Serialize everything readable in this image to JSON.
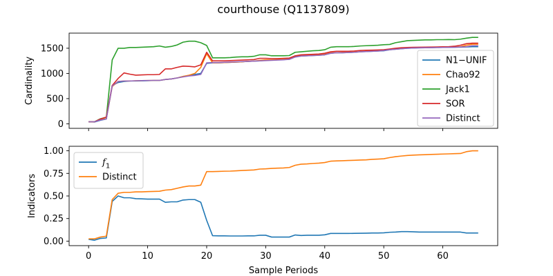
{
  "title": "courthouse (Q1137809)",
  "colors": {
    "blue": "#1f77b4",
    "orange": "#ff7f0e",
    "green": "#2ca02c",
    "red": "#d62728",
    "purple": "#9467bd"
  },
  "chart_data": [
    {
      "type": "line",
      "ylabel": "Cardinality",
      "xlabel": "",
      "xlim": [
        -3.3,
        69.3
      ],
      "ylim": [
        -90,
        1800
      ],
      "xticks": [
        0,
        10,
        20,
        30,
        40,
        50,
        60
      ],
      "yticks": [
        0,
        500,
        1000,
        1500
      ],
      "legend_position": "lower-right",
      "series": [
        {
          "name": "N1−UNIF",
          "color": "#1f77b4",
          "x": [
            0,
            1,
            2,
            3,
            4,
            5,
            6,
            7,
            8,
            9,
            10,
            11,
            12,
            13,
            14,
            15,
            16,
            17,
            18,
            19,
            20,
            21,
            22,
            23,
            24,
            25,
            26,
            27,
            28,
            29,
            30,
            31,
            32,
            33,
            34,
            35,
            36,
            37,
            38,
            39,
            40,
            41,
            42,
            43,
            44,
            45,
            46,
            47,
            48,
            49,
            50,
            51,
            52,
            53,
            54,
            55,
            56,
            57,
            58,
            59,
            60,
            61,
            62,
            63,
            64,
            65,
            66
          ],
          "y": [
            40,
            35,
            70,
            95,
            760,
            820,
            840,
            850,
            850,
            852,
            855,
            860,
            860,
            880,
            890,
            910,
            940,
            960,
            980,
            1000,
            1200,
            1210,
            1210,
            1215,
            1220,
            1225,
            1230,
            1240,
            1245,
            1250,
            1260,
            1265,
            1270,
            1275,
            1280,
            1330,
            1345,
            1350,
            1355,
            1360,
            1370,
            1400,
            1410,
            1410,
            1415,
            1420,
            1430,
            1435,
            1440,
            1445,
            1450,
            1470,
            1480,
            1490,
            1500,
            1505,
            1508,
            1510,
            1512,
            1514,
            1516,
            1518,
            1520,
            1522,
            1525,
            1530,
            1530
          ]
        },
        {
          "name": "Chao92",
          "color": "#ff7f0e",
          "x": [
            0,
            1,
            2,
            3,
            4,
            5,
            6,
            7,
            8,
            9,
            10,
            11,
            12,
            13,
            14,
            15,
            16,
            17,
            18,
            19,
            20,
            21,
            22,
            23,
            24,
            25,
            26,
            27,
            28,
            29,
            30,
            31,
            32,
            33,
            34,
            35,
            36,
            37,
            38,
            39,
            40,
            41,
            42,
            43,
            44,
            45,
            46,
            47,
            48,
            49,
            50,
            51,
            52,
            53,
            54,
            55,
            56,
            57,
            58,
            59,
            60,
            61,
            62,
            63,
            64,
            65,
            66
          ],
          "y": [
            40,
            40,
            90,
            100,
            740,
            840,
            850,
            850,
            855,
            857,
            860,
            862,
            862,
            880,
            890,
            910,
            940,
            965,
            1000,
            1120,
            1390,
            1210,
            1210,
            1215,
            1220,
            1225,
            1230,
            1240,
            1245,
            1260,
            1270,
            1270,
            1275,
            1280,
            1285,
            1350,
            1360,
            1365,
            1370,
            1375,
            1380,
            1410,
            1410,
            1420,
            1420,
            1425,
            1430,
            1440,
            1450,
            1455,
            1460,
            1480,
            1490,
            1500,
            1505,
            1510,
            1512,
            1514,
            1516,
            1518,
            1520,
            1522,
            1525,
            1530,
            1560,
            1580,
            1580
          ]
        },
        {
          "name": "Jack1",
          "color": "#2ca02c",
          "x": [
            0,
            1,
            2,
            3,
            4,
            5,
            6,
            7,
            8,
            9,
            10,
            11,
            12,
            13,
            14,
            15,
            16,
            17,
            18,
            19,
            20,
            21,
            22,
            23,
            24,
            25,
            26,
            27,
            28,
            29,
            30,
            31,
            32,
            33,
            34,
            35,
            36,
            37,
            38,
            39,
            40,
            41,
            42,
            43,
            44,
            45,
            46,
            47,
            48,
            49,
            50,
            51,
            52,
            53,
            54,
            55,
            56,
            57,
            58,
            59,
            60,
            61,
            62,
            63,
            64,
            65,
            66
          ],
          "y": [
            40,
            40,
            100,
            130,
            1270,
            1500,
            1500,
            1515,
            1515,
            1520,
            1525,
            1530,
            1545,
            1520,
            1535,
            1565,
            1620,
            1640,
            1640,
            1610,
            1555,
            1310,
            1310,
            1310,
            1315,
            1325,
            1330,
            1330,
            1340,
            1370,
            1370,
            1350,
            1350,
            1350,
            1355,
            1420,
            1430,
            1440,
            1450,
            1455,
            1470,
            1520,
            1530,
            1530,
            1530,
            1535,
            1545,
            1550,
            1555,
            1560,
            1570,
            1575,
            1610,
            1630,
            1650,
            1655,
            1660,
            1665,
            1665,
            1670,
            1670,
            1672,
            1670,
            1680,
            1700,
            1715,
            1715
          ]
        },
        {
          "name": "SOR",
          "color": "#d62728",
          "x": [
            0,
            1,
            2,
            3,
            4,
            5,
            6,
            7,
            8,
            9,
            10,
            11,
            12,
            13,
            14,
            15,
            16,
            17,
            18,
            19,
            20,
            21,
            22,
            23,
            24,
            25,
            26,
            27,
            28,
            29,
            30,
            31,
            32,
            33,
            34,
            35,
            36,
            37,
            38,
            39,
            40,
            41,
            42,
            43,
            44,
            45,
            46,
            47,
            48,
            49,
            50,
            51,
            52,
            53,
            54,
            55,
            56,
            57,
            58,
            59,
            60,
            61,
            62,
            63,
            64,
            65,
            66
          ],
          "y": [
            40,
            40,
            95,
            135,
            760,
            900,
            1010,
            985,
            965,
            970,
            975,
            975,
            980,
            1090,
            1090,
            1120,
            1145,
            1140,
            1130,
            1170,
            1420,
            1250,
            1250,
            1250,
            1255,
            1260,
            1265,
            1270,
            1275,
            1300,
            1300,
            1295,
            1295,
            1300,
            1305,
            1350,
            1370,
            1375,
            1380,
            1385,
            1400,
            1430,
            1440,
            1440,
            1440,
            1445,
            1455,
            1460,
            1462,
            1465,
            1470,
            1485,
            1500,
            1510,
            1515,
            1518,
            1520,
            1522,
            1524,
            1526,
            1528,
            1530,
            1540,
            1560,
            1590,
            1600,
            1600
          ]
        },
        {
          "name": "Distinct",
          "color": "#9467bd",
          "x": [
            0,
            1,
            2,
            3,
            4,
            5,
            6,
            7,
            8,
            9,
            10,
            11,
            12,
            13,
            14,
            15,
            16,
            17,
            18,
            19,
            20,
            21,
            22,
            23,
            24,
            25,
            26,
            27,
            28,
            29,
            30,
            31,
            32,
            33,
            34,
            35,
            36,
            37,
            38,
            39,
            40,
            41,
            42,
            43,
            44,
            45,
            46,
            47,
            48,
            49,
            50,
            51,
            52,
            53,
            54,
            55,
            56,
            57,
            58,
            59,
            60,
            61,
            62,
            63,
            64,
            65,
            66
          ],
          "y": [
            40,
            40,
            75,
            95,
            750,
            840,
            850,
            850,
            855,
            857,
            860,
            862,
            862,
            880,
            890,
            910,
            930,
            950,
            960,
            980,
            1210,
            1215,
            1215,
            1220,
            1225,
            1230,
            1235,
            1240,
            1245,
            1250,
            1255,
            1260,
            1265,
            1270,
            1280,
            1325,
            1345,
            1350,
            1355,
            1360,
            1370,
            1400,
            1410,
            1410,
            1415,
            1420,
            1430,
            1435,
            1440,
            1445,
            1455,
            1470,
            1480,
            1490,
            1500,
            1505,
            1508,
            1510,
            1512,
            1514,
            1516,
            1518,
            1520,
            1525,
            1530,
            1550,
            1550
          ]
        }
      ]
    },
    {
      "type": "line",
      "ylabel": "Indicators",
      "xlabel": "Sample Periods",
      "xlim": [
        -3.3,
        69.3
      ],
      "ylim": [
        -0.05,
        1.05
      ],
      "xticks": [
        0,
        10,
        20,
        30,
        40,
        50,
        60
      ],
      "xticklabels": [
        "0",
        "10",
        "20",
        "30",
        "40",
        "50",
        "60"
      ],
      "yticks": [
        0,
        0.25,
        0.5,
        0.75,
        1.0
      ],
      "yticklabels": [
        "0.00",
        "0.25",
        "0.50",
        "0.75",
        "1.00"
      ],
      "legend_position": "upper-left",
      "series": [
        {
          "name": "f1",
          "color": "#1f77b4",
          "x": [
            0,
            1,
            2,
            3,
            4,
            5,
            6,
            7,
            8,
            9,
            10,
            11,
            12,
            13,
            14,
            15,
            16,
            17,
            18,
            19,
            20,
            21,
            22,
            23,
            24,
            25,
            26,
            27,
            28,
            29,
            30,
            31,
            32,
            33,
            34,
            35,
            36,
            37,
            38,
            39,
            40,
            41,
            42,
            43,
            44,
            45,
            46,
            47,
            48,
            49,
            50,
            51,
            52,
            53,
            54,
            55,
            56,
            57,
            58,
            59,
            60,
            61,
            62,
            63,
            64,
            65,
            66
          ],
          "y": [
            0.02,
            0.01,
            0.03,
            0.035,
            0.44,
            0.5,
            0.48,
            0.48,
            0.47,
            0.468,
            0.465,
            0.465,
            0.465,
            0.43,
            0.435,
            0.435,
            0.455,
            0.46,
            0.46,
            0.43,
            0.23,
            0.06,
            0.058,
            0.058,
            0.057,
            0.057,
            0.057,
            0.058,
            0.058,
            0.065,
            0.065,
            0.045,
            0.045,
            0.045,
            0.045,
            0.068,
            0.062,
            0.065,
            0.065,
            0.065,
            0.07,
            0.085,
            0.085,
            0.085,
            0.085,
            0.086,
            0.087,
            0.088,
            0.09,
            0.09,
            0.092,
            0.098,
            0.1,
            0.105,
            0.105,
            0.103,
            0.1,
            0.1,
            0.1,
            0.1,
            0.1,
            0.1,
            0.1,
            0.1,
            0.09,
            0.09,
            0.09
          ]
        },
        {
          "name": "Distinct",
          "color": "#ff7f0e",
          "x": [
            0,
            1,
            2,
            3,
            4,
            5,
            6,
            7,
            8,
            9,
            10,
            11,
            12,
            13,
            14,
            15,
            16,
            17,
            18,
            19,
            20,
            21,
            22,
            23,
            24,
            25,
            26,
            27,
            28,
            29,
            30,
            31,
            32,
            33,
            34,
            35,
            36,
            37,
            38,
            39,
            40,
            41,
            42,
            43,
            44,
            45,
            46,
            47,
            48,
            49,
            50,
            51,
            52,
            53,
            54,
            55,
            56,
            57,
            58,
            59,
            60,
            61,
            62,
            63,
            64,
            65,
            66
          ],
          "y": [
            0.025,
            0.025,
            0.045,
            0.055,
            0.46,
            0.53,
            0.54,
            0.54,
            0.545,
            0.545,
            0.548,
            0.55,
            0.552,
            0.565,
            0.57,
            0.585,
            0.6,
            0.61,
            0.61,
            0.62,
            0.77,
            0.77,
            0.772,
            0.774,
            0.775,
            0.778,
            0.782,
            0.785,
            0.788,
            0.798,
            0.8,
            0.805,
            0.808,
            0.81,
            0.815,
            0.84,
            0.852,
            0.855,
            0.86,
            0.863,
            0.87,
            0.885,
            0.888,
            0.89,
            0.893,
            0.895,
            0.898,
            0.9,
            0.905,
            0.908,
            0.912,
            0.925,
            0.935,
            0.942,
            0.948,
            0.952,
            0.955,
            0.957,
            0.96,
            0.962,
            0.964,
            0.966,
            0.968,
            0.97,
            0.99,
            1.0,
            1.0
          ]
        }
      ]
    }
  ]
}
